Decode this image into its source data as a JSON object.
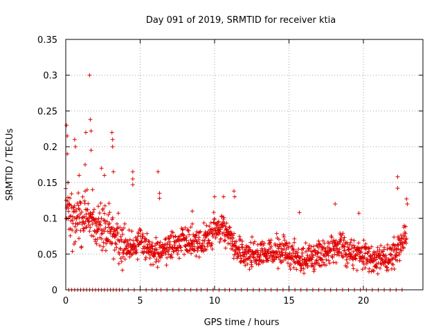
{
  "chart_data": {
    "type": "scatter",
    "title": "Day 091 of 2019, SRMTID for receiver ktia",
    "xlabel": "GPS time / hours",
    "ylabel": "SRMTID / TECUs",
    "xlim": [
      0,
      24
    ],
    "ylim": [
      0,
      0.35
    ],
    "xticks": [
      0,
      5,
      10,
      15,
      20
    ],
    "xtick_labels": [
      "0",
      "5",
      "10",
      "15",
      "20"
    ],
    "yticks": [
      0,
      0.05,
      0.1,
      0.15,
      0.2,
      0.25,
      0.3,
      0.35
    ],
    "ytick_labels": [
      "0",
      "0.05",
      "0.1",
      "0.15",
      "0.2",
      "0.25",
      "0.3",
      "0.35"
    ],
    "grid": true,
    "marker": "+",
    "color": "#e00000",
    "trend": [
      {
        "x": 0.0,
        "y": 0.11
      },
      {
        "x": 0.5,
        "y": 0.1
      },
      {
        "x": 1.0,
        "y": 0.1
      },
      {
        "x": 1.5,
        "y": 0.11
      },
      {
        "x": 2.0,
        "y": 0.09
      },
      {
        "x": 2.5,
        "y": 0.08
      },
      {
        "x": 3.0,
        "y": 0.09
      },
      {
        "x": 3.5,
        "y": 0.07
      },
      {
        "x": 4.0,
        "y": 0.06
      },
      {
        "x": 4.5,
        "y": 0.06
      },
      {
        "x": 5.0,
        "y": 0.065
      },
      {
        "x": 5.5,
        "y": 0.06
      },
      {
        "x": 6.0,
        "y": 0.055
      },
      {
        "x": 6.5,
        "y": 0.055
      },
      {
        "x": 7.0,
        "y": 0.06
      },
      {
        "x": 7.5,
        "y": 0.065
      },
      {
        "x": 8.0,
        "y": 0.065
      },
      {
        "x": 8.5,
        "y": 0.07
      },
      {
        "x": 9.0,
        "y": 0.065
      },
      {
        "x": 9.5,
        "y": 0.07
      },
      {
        "x": 10.0,
        "y": 0.085
      },
      {
        "x": 10.5,
        "y": 0.085
      },
      {
        "x": 11.0,
        "y": 0.08
      },
      {
        "x": 11.5,
        "y": 0.055
      },
      {
        "x": 12.0,
        "y": 0.05
      },
      {
        "x": 12.5,
        "y": 0.05
      },
      {
        "x": 13.0,
        "y": 0.05
      },
      {
        "x": 13.5,
        "y": 0.05
      },
      {
        "x": 14.0,
        "y": 0.055
      },
      {
        "x": 14.5,
        "y": 0.055
      },
      {
        "x": 15.0,
        "y": 0.05
      },
      {
        "x": 15.5,
        "y": 0.045
      },
      {
        "x": 16.0,
        "y": 0.045
      },
      {
        "x": 16.5,
        "y": 0.045
      },
      {
        "x": 17.0,
        "y": 0.05
      },
      {
        "x": 17.5,
        "y": 0.05
      },
      {
        "x": 18.0,
        "y": 0.06
      },
      {
        "x": 18.5,
        "y": 0.06
      },
      {
        "x": 19.0,
        "y": 0.05
      },
      {
        "x": 19.5,
        "y": 0.05
      },
      {
        "x": 20.0,
        "y": 0.05
      },
      {
        "x": 20.5,
        "y": 0.045
      },
      {
        "x": 21.0,
        "y": 0.04
      },
      {
        "x": 21.5,
        "y": 0.04
      },
      {
        "x": 22.0,
        "y": 0.05
      },
      {
        "x": 22.5,
        "y": 0.065
      },
      {
        "x": 22.9,
        "y": 0.08
      }
    ],
    "spread": 0.018,
    "points_per_hour": 60,
    "x_end": 22.9,
    "outliers": [
      {
        "x": 0.05,
        "y": 0.23
      },
      {
        "x": 0.1,
        "y": 0.215
      },
      {
        "x": 0.1,
        "y": 0.19
      },
      {
        "x": 0.15,
        "y": 0.15
      },
      {
        "x": 0.6,
        "y": 0.21
      },
      {
        "x": 0.65,
        "y": 0.2
      },
      {
        "x": 0.9,
        "y": 0.16
      },
      {
        "x": 1.3,
        "y": 0.175
      },
      {
        "x": 1.35,
        "y": 0.22
      },
      {
        "x": 1.6,
        "y": 0.3
      },
      {
        "x": 1.65,
        "y": 0.238
      },
      {
        "x": 1.7,
        "y": 0.222
      },
      {
        "x": 1.7,
        "y": 0.195
      },
      {
        "x": 1.8,
        "y": 0.14
      },
      {
        "x": 2.4,
        "y": 0.17
      },
      {
        "x": 2.6,
        "y": 0.16
      },
      {
        "x": 3.1,
        "y": 0.22
      },
      {
        "x": 3.15,
        "y": 0.21
      },
      {
        "x": 3.15,
        "y": 0.2
      },
      {
        "x": 3.2,
        "y": 0.165
      },
      {
        "x": 4.5,
        "y": 0.165
      },
      {
        "x": 4.5,
        "y": 0.155
      },
      {
        "x": 4.5,
        "y": 0.147
      },
      {
        "x": 6.2,
        "y": 0.165
      },
      {
        "x": 6.3,
        "y": 0.135
      },
      {
        "x": 6.3,
        "y": 0.128
      },
      {
        "x": 8.5,
        "y": 0.11
      },
      {
        "x": 10.0,
        "y": 0.13
      },
      {
        "x": 10.6,
        "y": 0.13
      },
      {
        "x": 11.3,
        "y": 0.138
      },
      {
        "x": 11.35,
        "y": 0.13
      },
      {
        "x": 15.7,
        "y": 0.108
      },
      {
        "x": 18.1,
        "y": 0.12
      },
      {
        "x": 19.7,
        "y": 0.107
      },
      {
        "x": 22.3,
        "y": 0.158
      },
      {
        "x": 22.3,
        "y": 0.142
      },
      {
        "x": 22.9,
        "y": 0.127
      },
      {
        "x": 22.95,
        "y": 0.12
      }
    ],
    "zeros": [
      0.2,
      0.4,
      0.6,
      0.8,
      1.0,
      1.2,
      1.4,
      1.6,
      1.8,
      2.0,
      2.2,
      2.4,
      2.6,
      2.8,
      3.0,
      3.2,
      3.4,
      3.6,
      3.8,
      4.2,
      4.6,
      5.0,
      5.4,
      5.8,
      6.1,
      6.4,
      6.8,
      7.2,
      7.6,
      8.0,
      8.4,
      8.8,
      9.1,
      9.5,
      9.9,
      10.3,
      10.7,
      11.0,
      11.4,
      11.8,
      12.2,
      12.6,
      13.0,
      13.4,
      13.8,
      14.2,
      14.6,
      15.0,
      15.4,
      15.8,
      16.2,
      16.6,
      17.0,
      17.4,
      17.8,
      18.2,
      18.6,
      19.0,
      19.4,
      19.8,
      20.2,
      20.6,
      21.0,
      21.4,
      21.8,
      22.2,
      22.6
    ]
  }
}
